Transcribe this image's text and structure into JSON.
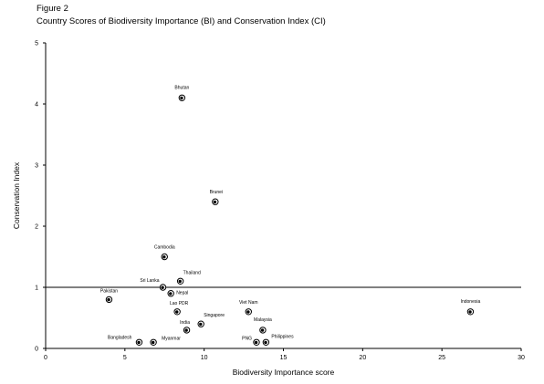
{
  "figure_label": "Figure 2",
  "chart_data": {
    "type": "scatter",
    "title": "Country Scores of Biodiversity Importance (BI) and Conservation Index (CI)",
    "xlabel": "Biodiversity  Importance score",
    "ylabel": "Conservation Index",
    "xlim": [
      0,
      30
    ],
    "ylim": [
      0,
      5
    ],
    "xticks": [
      0,
      5,
      10,
      15,
      20,
      25,
      30
    ],
    "yticks": [
      0,
      1,
      2,
      3,
      4,
      5
    ],
    "reference_line": 1,
    "grid": false,
    "points": [
      {
        "label": "Bhutan",
        "x": 8.6,
        "y": 4.1
      },
      {
        "label": "Brunei",
        "x": 10.7,
        "y": 2.4
      },
      {
        "label": "Cambodia",
        "x": 7.5,
        "y": 1.5
      },
      {
        "label": "Thailand",
        "x": 8.5,
        "y": 1.1
      },
      {
        "label": "Sri Lanka",
        "x": 7.4,
        "y": 1.0
      },
      {
        "label": "Nepal",
        "x": 7.9,
        "y": 0.9
      },
      {
        "label": "Pakistan",
        "x": 4.0,
        "y": 0.8
      },
      {
        "label": "Lao PDR",
        "x": 8.3,
        "y": 0.6
      },
      {
        "label": "Viet Nam",
        "x": 12.8,
        "y": 0.6
      },
      {
        "label": "Indonesia",
        "x": 26.8,
        "y": 0.6
      },
      {
        "label": "Singapore",
        "x": 9.8,
        "y": 0.4
      },
      {
        "label": "India",
        "x": 8.9,
        "y": 0.3
      },
      {
        "label": "Malaysia",
        "x": 13.7,
        "y": 0.3
      },
      {
        "label": "Bangladesh",
        "x": 5.9,
        "y": 0.1
      },
      {
        "label": "Myanmar",
        "x": 6.8,
        "y": 0.1
      },
      {
        "label": "PNG",
        "x": 13.3,
        "y": 0.1
      },
      {
        "label": "Philippines",
        "x": 13.9,
        "y": 0.1
      }
    ]
  }
}
